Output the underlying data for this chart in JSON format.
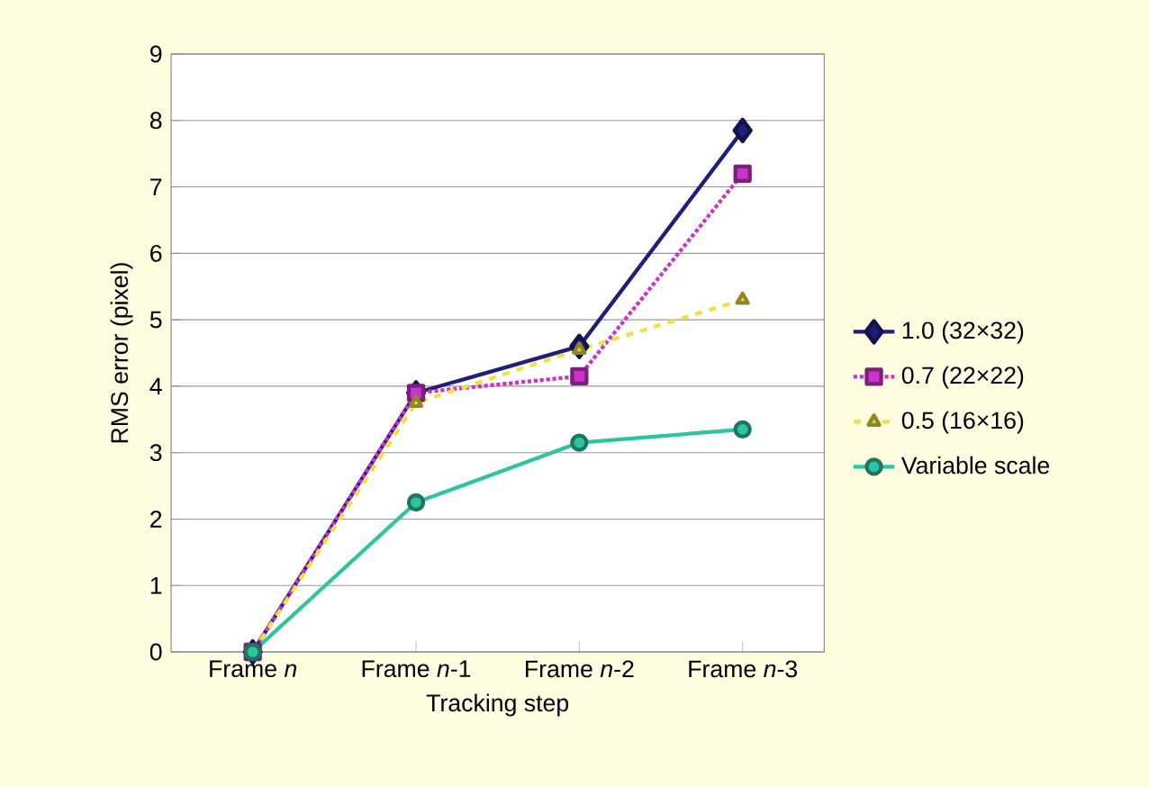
{
  "chart_data": {
    "type": "line",
    "xlabel": "Tracking step",
    "ylabel": "RMS error (pixel)",
    "categories": [
      "Frame *n*",
      "Frame *n*-1",
      "Frame *n*-2",
      "Frame *n*-3"
    ],
    "series": [
      {
        "name": "1.0 (32×32)",
        "color": "#1f1f7a",
        "values": [
          0,
          3.9,
          4.6,
          7.85
        ],
        "marker": "diamond",
        "line_style": "solid"
      },
      {
        "name": "0.7 (22×22)",
        "color": "#cc33cc",
        "values": [
          0,
          3.9,
          4.15,
          7.2
        ],
        "marker": "square",
        "line_style": "dotted"
      },
      {
        "name": "0.5 (16×16)",
        "color": "#f0e040",
        "values": [
          0,
          3.75,
          4.55,
          5.3
        ],
        "marker": "triangle",
        "line_style": "dashed"
      },
      {
        "name": "Variable scale",
        "color": "#2ec4a0",
        "values": [
          0,
          2.25,
          3.15,
          3.35
        ],
        "marker": "circle",
        "line_style": "solid"
      }
    ],
    "ylim": [
      0,
      9
    ],
    "yticks": [
      0,
      1,
      2,
      3,
      4,
      5,
      6,
      7,
      8,
      9
    ],
    "grid": "y",
    "legend": "right"
  }
}
